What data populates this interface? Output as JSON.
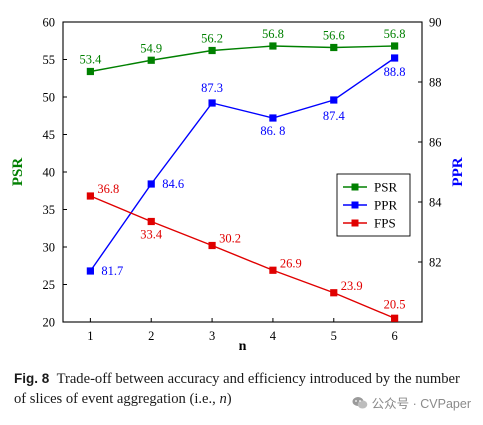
{
  "chart_data": {
    "type": "line",
    "xlabel": "n",
    "ylabel_left": "PSR",
    "ylabel_right": "PPR",
    "x": [
      1,
      2,
      3,
      4,
      5,
      6
    ],
    "ylim_left": [
      20,
      60
    ],
    "ylim_right": [
      80,
      90
    ],
    "yticks_left": [
      20,
      25,
      30,
      35,
      40,
      45,
      50,
      55,
      60
    ],
    "yticks_right": [
      82,
      84,
      86,
      88,
      90
    ],
    "xticks": [
      1,
      2,
      3,
      4,
      5,
      6
    ],
    "legend_position": "center-right",
    "series": [
      {
        "name": "PSR",
        "axis": "left",
        "color": "#008000",
        "marker": "square",
        "values": [
          53.4,
          54.9,
          56.2,
          56.8,
          56.6,
          56.8
        ],
        "labels": [
          "53.4",
          "54.9",
          "56.2",
          "56.8",
          "56.6",
          "56.8"
        ]
      },
      {
        "name": "PPR",
        "axis": "right",
        "color": "#0000ff",
        "marker": "square",
        "values": [
          81.7,
          84.6,
          87.3,
          86.8,
          87.4,
          88.8
        ],
        "labels": [
          "81.7",
          "84.6",
          "87.3",
          "86. 8",
          "87.4",
          "88.8"
        ]
      },
      {
        "name": "FPS",
        "axis": "left",
        "color": "#e00000",
        "marker": "square",
        "values": [
          36.8,
          33.4,
          30.2,
          26.9,
          23.9,
          20.5
        ],
        "labels": [
          "36.8",
          "33.4",
          "30.2",
          "26.9",
          "23.9",
          "20.5"
        ]
      }
    ]
  },
  "caption": {
    "label": "Fig. 8",
    "text": "Trade-off between accuracy and efficiency introduced by the number of slices of event aggregation (i.e., ",
    "italic": "n",
    "tail": ")"
  },
  "watermark": {
    "text": "公众号 · CVPaper",
    "icon": "wechat-icon"
  }
}
